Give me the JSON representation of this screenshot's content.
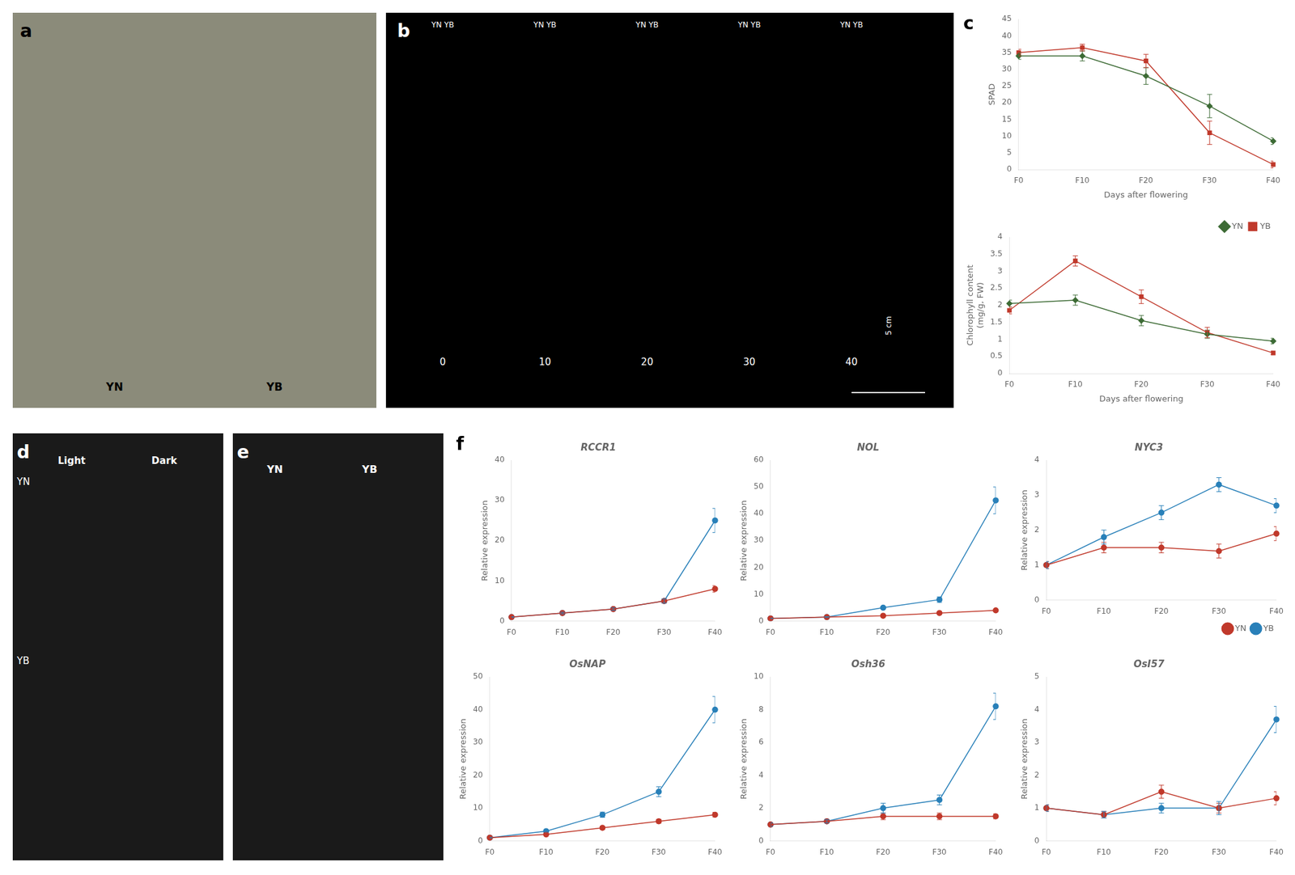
{
  "chart_data": [
    {
      "type": "image",
      "color": "#8b8b7a",
      "annotations": [
        "a",
        "YN",
        "YB"
      ]
    },
    {
      "type": "image",
      "color": "#000000",
      "annotations": [
        "b",
        "YN YB",
        "YN YB",
        "YN YB",
        "YN YB",
        "YN YB",
        "0",
        "10",
        "20",
        "30",
        "40",
        "5 cm"
      ]
    },
    {
      "type": "line",
      "annotations": [
        "c"
      ],
      "categories": [
        "F0",
        "F10",
        "F20",
        "F30",
        "F40"
      ],
      "xlabel": "Days after flowering",
      "ylabel": "SPAD",
      "ylim": [
        0,
        45
      ],
      "yticks": [
        0,
        5,
        10,
        15,
        20,
        25,
        30,
        35,
        40,
        45
      ],
      "grid": false,
      "series": [
        {
          "name": "YN",
          "color": "#3d6b35",
          "marker": "diamond",
          "values": [
            34,
            34,
            28,
            19,
            8.5
          ],
          "errors": [
            1.0,
            1.5,
            2.5,
            3.5,
            1.0
          ]
        },
        {
          "name": "YB",
          "color": "#c0392b",
          "marker": "square",
          "values": [
            35,
            36.5,
            32.5,
            11,
            1.5
          ],
          "errors": [
            1.0,
            1.0,
            2.0,
            3.5,
            1.0
          ]
        }
      ]
    },
    {
      "type": "line",
      "categories": [
        "F0",
        "F10",
        "F20",
        "F30",
        "F40"
      ],
      "xlabel": "Days after flowering",
      "ylabel": "Chlorophyll content\n(mg/g, FW)",
      "ylim": [
        0,
        4
      ],
      "yticks": [
        0,
        0.5,
        1.0,
        1.5,
        2.0,
        2.5,
        3.0,
        3.5,
        4.0
      ],
      "grid": false,
      "legend": "upper right",
      "series": [
        {
          "name": "YN",
          "color": "#3d6b35",
          "marker": "diamond",
          "values": [
            2.05,
            2.15,
            1.55,
            1.15,
            0.95
          ],
          "errors": [
            0.1,
            0.15,
            0.15,
            0.12,
            0.08
          ]
        },
        {
          "name": "YB",
          "color": "#c0392b",
          "marker": "square",
          "values": [
            1.85,
            3.3,
            2.25,
            1.2,
            0.6
          ],
          "errors": [
            0.1,
            0.15,
            0.2,
            0.15,
            0.05
          ]
        }
      ]
    },
    {
      "type": "image",
      "color": "#1a1a1a",
      "annotations": [
        "d",
        "Light",
        "Dark",
        "YN",
        "YB"
      ]
    },
    {
      "type": "image",
      "color": "#1a1a1a",
      "annotations": [
        "e",
        "YN",
        "YB"
      ]
    },
    {
      "type": "line",
      "title": "RCCR1",
      "annotations": [
        "f"
      ],
      "categories": [
        "F0",
        "F10",
        "F20",
        "F30",
        "F40"
      ],
      "ylabel": "Relative expression",
      "ylim": [
        0,
        40
      ],
      "yticks": [
        0,
        10,
        20,
        30,
        40
      ],
      "grid": false,
      "series": [
        {
          "name": "YN",
          "color": "#c0392b",
          "marker": "circle",
          "values": [
            1,
            2,
            3,
            5,
            8
          ],
          "errors": [
            0.1,
            0.2,
            0.3,
            0.5,
            0.8
          ]
        },
        {
          "name": "YB",
          "color": "#2980b9",
          "marker": "circle",
          "values": [
            1,
            2,
            3,
            5,
            25
          ],
          "errors": [
            0.1,
            0.2,
            0.3,
            0.5,
            3.0
          ]
        }
      ]
    },
    {
      "type": "line",
      "title": "NOL",
      "categories": [
        "F0",
        "F10",
        "F20",
        "F30",
        "F40"
      ],
      "ylabel": "Relative expression",
      "ylim": [
        0,
        60
      ],
      "yticks": [
        0,
        10,
        20,
        30,
        40,
        50,
        60
      ],
      "grid": false,
      "series": [
        {
          "name": "YN",
          "color": "#c0392b",
          "marker": "circle",
          "values": [
            1,
            1.5,
            2,
            3,
            4
          ],
          "errors": [
            0.1,
            0.15,
            0.2,
            0.3,
            0.4
          ]
        },
        {
          "name": "YB",
          "color": "#2980b9",
          "marker": "circle",
          "values": [
            1,
            1.5,
            5,
            8,
            45
          ],
          "errors": [
            0.1,
            0.15,
            0.5,
            1.0,
            5.0
          ]
        }
      ]
    },
    {
      "type": "line",
      "title": "NYC3",
      "categories": [
        "F0",
        "F10",
        "F20",
        "F30",
        "F40"
      ],
      "ylabel": "Relative expression",
      "ylim": [
        0,
        4
      ],
      "yticks": [
        0,
        1,
        2,
        3,
        4
      ],
      "grid": false,
      "legend": "lower right",
      "series": [
        {
          "name": "YN",
          "color": "#c0392b",
          "marker": "circle",
          "values": [
            1.0,
            1.5,
            1.5,
            1.4,
            1.9
          ],
          "errors": [
            0.1,
            0.15,
            0.15,
            0.2,
            0.2
          ]
        },
        {
          "name": "YB",
          "color": "#2980b9",
          "marker": "circle",
          "values": [
            1.0,
            1.8,
            2.5,
            3.3,
            2.7
          ],
          "errors": [
            0.1,
            0.2,
            0.2,
            0.2,
            0.2
          ]
        }
      ]
    },
    {
      "type": "line",
      "title": "OsNAP",
      "categories": [
        "F0",
        "F10",
        "F20",
        "F30",
        "F40"
      ],
      "ylabel": "Relative expression",
      "ylim": [
        0,
        50
      ],
      "yticks": [
        0,
        10,
        20,
        30,
        40,
        50
      ],
      "grid": false,
      "series": [
        {
          "name": "YN",
          "color": "#c0392b",
          "marker": "circle",
          "values": [
            1,
            2,
            4,
            6,
            8
          ],
          "errors": [
            0.1,
            0.2,
            0.5,
            0.6,
            0.7
          ]
        },
        {
          "name": "YB",
          "color": "#2980b9",
          "marker": "circle",
          "values": [
            1,
            3,
            8,
            15,
            40
          ],
          "errors": [
            0.1,
            0.3,
            0.8,
            1.5,
            4.0
          ]
        }
      ]
    },
    {
      "type": "line",
      "title": "Osh36",
      "categories": [
        "F0",
        "F10",
        "F20",
        "F30",
        "F40"
      ],
      "ylabel": "Relative expression",
      "ylim": [
        0,
        10
      ],
      "yticks": [
        0,
        2,
        4,
        6,
        8,
        10
      ],
      "grid": false,
      "series": [
        {
          "name": "YN",
          "color": "#c0392b",
          "marker": "circle",
          "values": [
            1,
            1.2,
            1.5,
            1.5,
            1.5
          ],
          "errors": [
            0.1,
            0.1,
            0.2,
            0.2,
            0.15
          ]
        },
        {
          "name": "YB",
          "color": "#2980b9",
          "marker": "circle",
          "values": [
            1,
            1.2,
            2.0,
            2.5,
            8.2
          ],
          "errors": [
            0.1,
            0.1,
            0.3,
            0.3,
            0.8
          ]
        }
      ]
    },
    {
      "type": "line",
      "title": "OsI57",
      "categories": [
        "F0",
        "F10",
        "F20",
        "F30",
        "F40"
      ],
      "ylabel": "Relative expression",
      "ylim": [
        0,
        5
      ],
      "yticks": [
        0,
        1,
        2,
        3,
        4,
        5
      ],
      "grid": false,
      "series": [
        {
          "name": "YN",
          "color": "#c0392b",
          "marker": "circle",
          "values": [
            1.0,
            0.8,
            1.5,
            1.0,
            1.3
          ],
          "errors": [
            0.1,
            0.1,
            0.2,
            0.15,
            0.2
          ]
        },
        {
          "name": "YB",
          "color": "#2980b9",
          "marker": "circle",
          "values": [
            1.0,
            0.8,
            1.0,
            1.0,
            3.7
          ],
          "errors": [
            0.1,
            0.1,
            0.15,
            0.2,
            0.4
          ]
        }
      ]
    }
  ]
}
